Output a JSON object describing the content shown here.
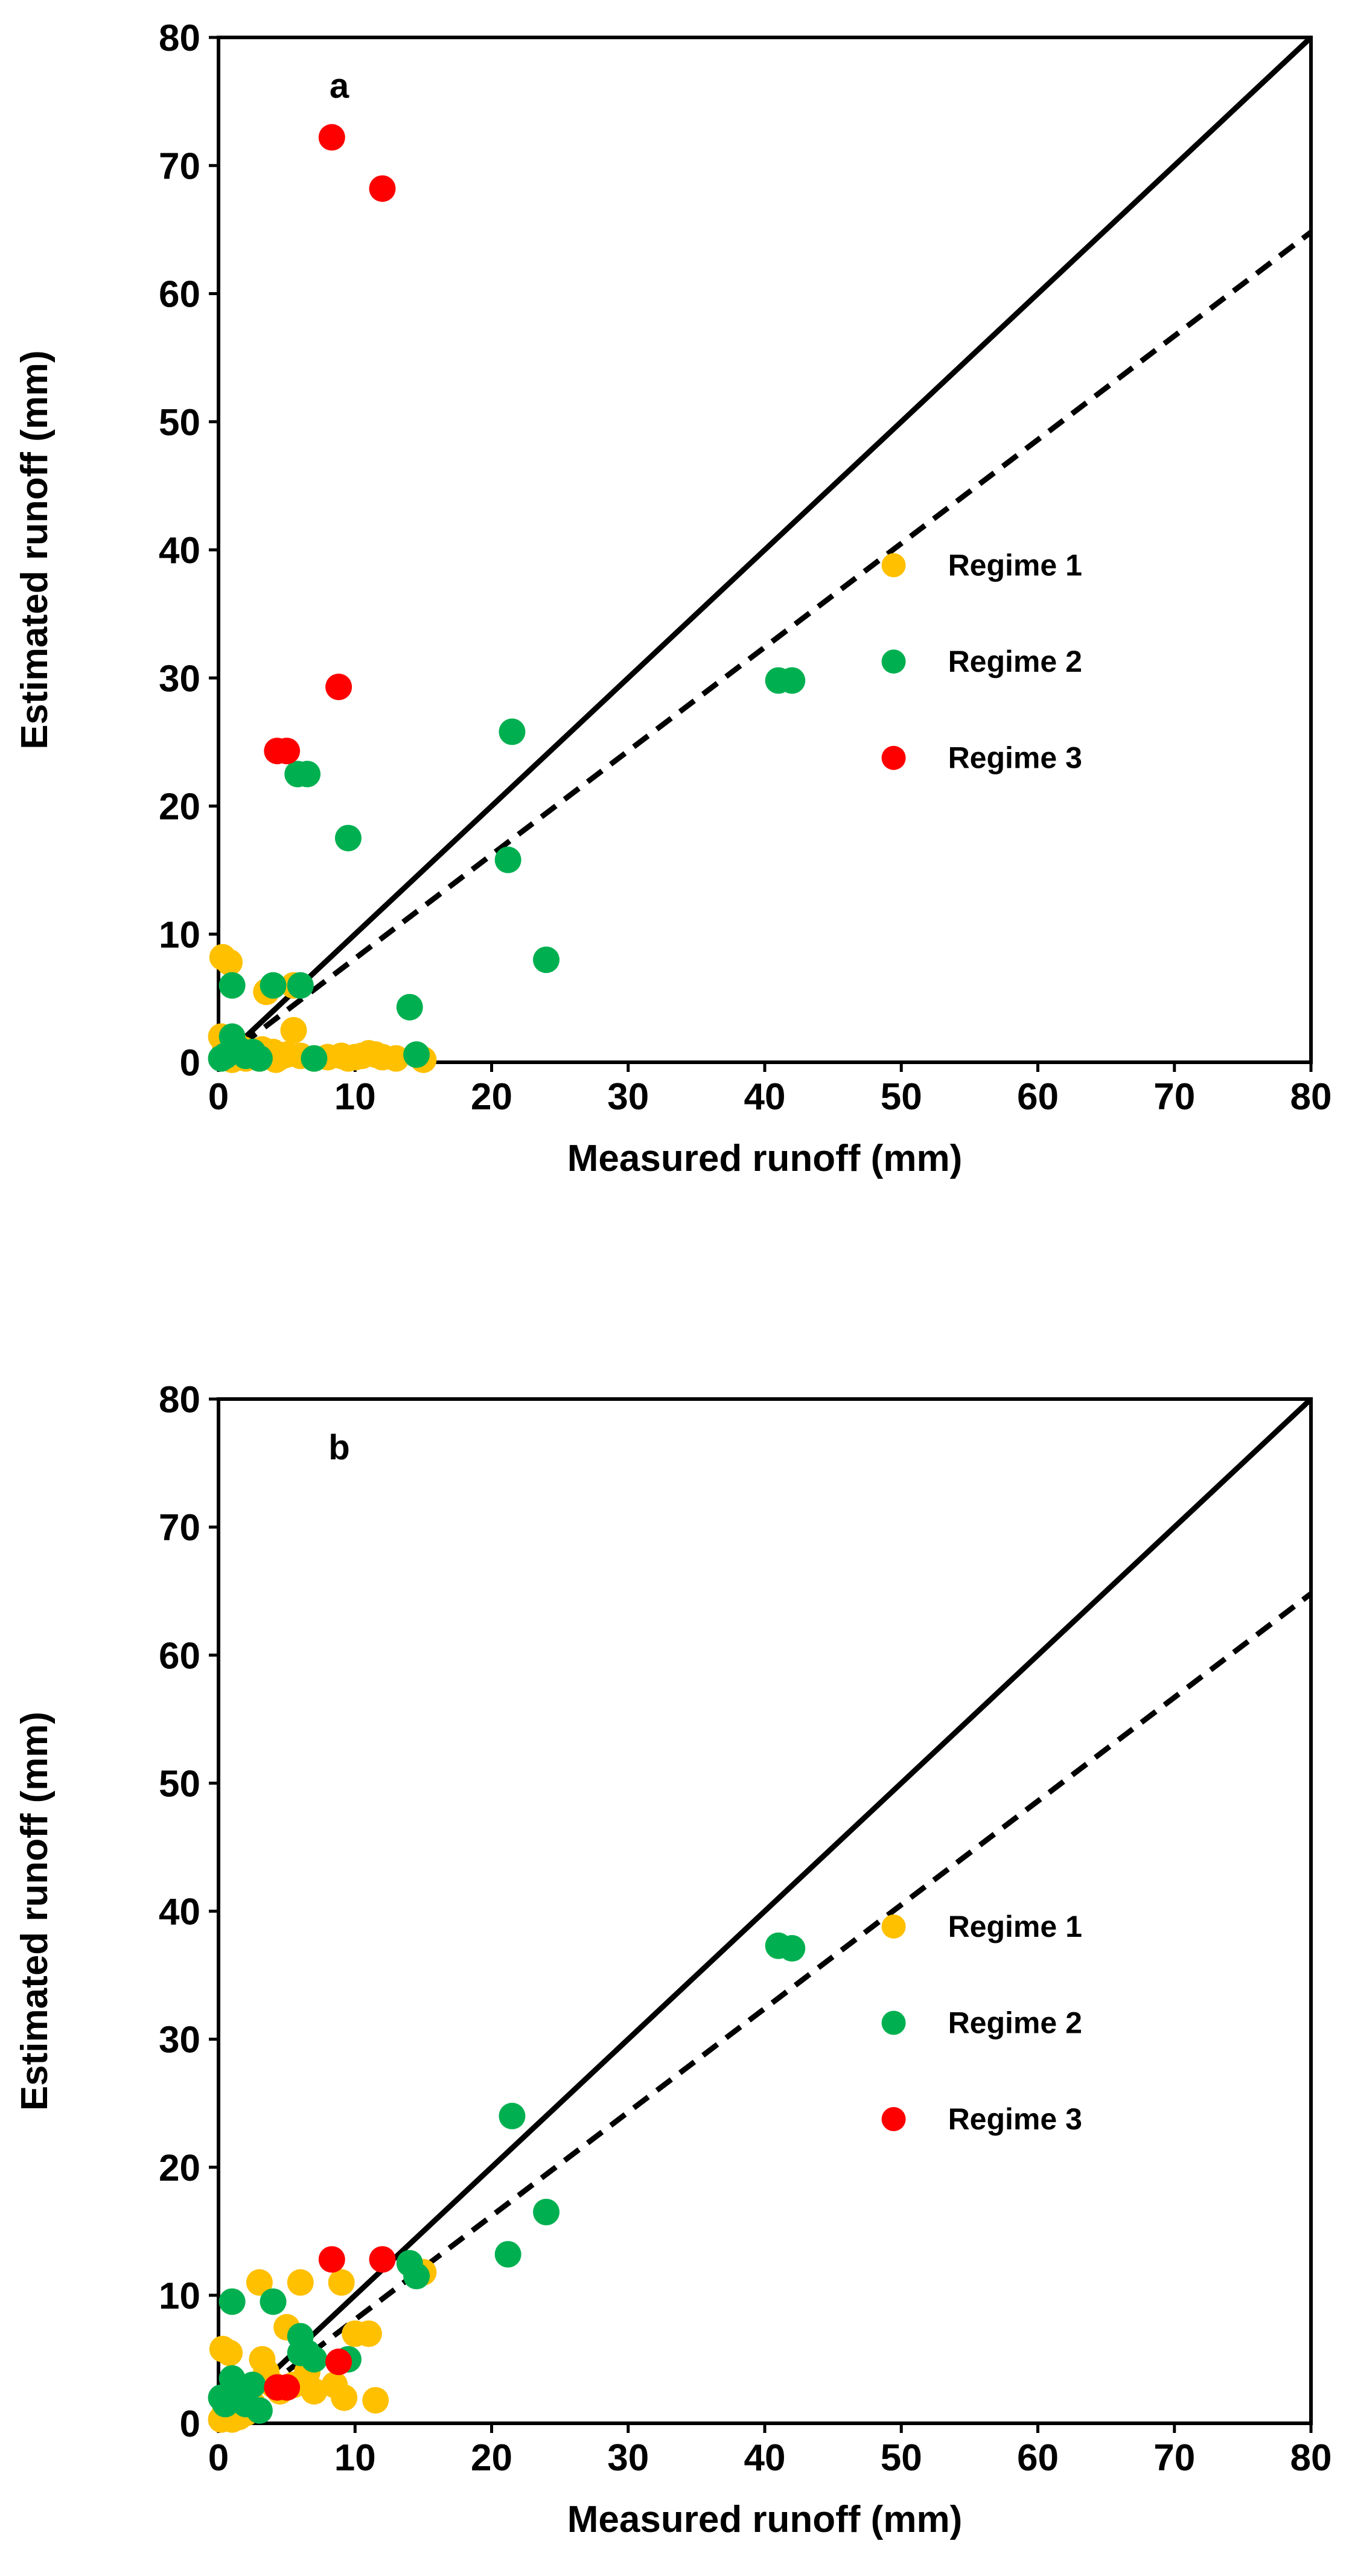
{
  "chart_data": [
    {
      "type": "scatter",
      "panel_label": "a",
      "xlabel": "Measured runoff (mm)",
      "ylabel": "Estimated runoff (mm)",
      "xlim": [
        0,
        80
      ],
      "ylim": [
        0,
        80
      ],
      "xticks": [
        0,
        10,
        20,
        30,
        40,
        50,
        60,
        70,
        80
      ],
      "yticks": [
        0,
        10,
        20,
        30,
        40,
        50,
        60,
        70,
        80
      ],
      "grid": false,
      "legend_position": "right",
      "reference_lines": [
        {
          "name": "1:1 line",
          "style": "solid",
          "color": "#000000",
          "slope": 1.0,
          "intercept": 0
        },
        {
          "name": "regression line",
          "style": "dashed",
          "color": "#000000",
          "slope": 0.81,
          "intercept": 0
        }
      ],
      "series": [
        {
          "name": "Regime 1",
          "color": "#FFC000",
          "points": [
            [
              0.3,
              8.2
            ],
            [
              0.8,
              7.8
            ],
            [
              0.2,
              2.0
            ],
            [
              0.5,
              1.2
            ],
            [
              1.2,
              1.5
            ],
            [
              1.8,
              1.0
            ],
            [
              2.5,
              0.6
            ],
            [
              3.0,
              0.3
            ],
            [
              3.5,
              5.5
            ],
            [
              4.0,
              0.8
            ],
            [
              4.5,
              0.4
            ],
            [
              5.0,
              0.6
            ],
            [
              5.5,
              2.5
            ],
            [
              5.5,
              6.0
            ],
            [
              6.0,
              0.5
            ],
            [
              7.0,
              0.3
            ],
            [
              8.0,
              0.4
            ],
            [
              9.0,
              0.5
            ],
            [
              9.5,
              0.3
            ],
            [
              10.0,
              0.4
            ],
            [
              10.5,
              0.5
            ],
            [
              11.0,
              0.7
            ],
            [
              11.5,
              0.6
            ],
            [
              12.0,
              0.4
            ],
            [
              13.0,
              0.3
            ],
            [
              15.0,
              0.2
            ],
            [
              1.0,
              0.2
            ],
            [
              2.0,
              0.3
            ],
            [
              3.2,
              1.0
            ],
            [
              4.2,
              0.2
            ]
          ]
        },
        {
          "name": "Regime 2",
          "color": "#00B050",
          "points": [
            [
              0.2,
              0.3
            ],
            [
              0.5,
              0.5
            ],
            [
              1.0,
              6.0
            ],
            [
              1.0,
              2.0
            ],
            [
              1.5,
              1.0
            ],
            [
              2.0,
              0.5
            ],
            [
              2.5,
              0.8
            ],
            [
              3.0,
              0.3
            ],
            [
              4.0,
              6.0
            ],
            [
              6.0,
              6.0
            ],
            [
              5.8,
              22.5
            ],
            [
              6.5,
              22.5
            ],
            [
              7.0,
              0.3
            ],
            [
              9.5,
              17.5
            ],
            [
              14.0,
              4.3
            ],
            [
              14.5,
              0.6
            ],
            [
              21.2,
              15.8
            ],
            [
              21.5,
              25.8
            ],
            [
              24.0,
              8.0
            ],
            [
              41.0,
              29.8
            ],
            [
              42.0,
              29.8
            ]
          ]
        },
        {
          "name": "Regime 3",
          "color": "#FF0000",
          "points": [
            [
              8.3,
              72.2
            ],
            [
              12.0,
              68.2
            ],
            [
              8.8,
              29.3
            ],
            [
              4.3,
              24.3
            ],
            [
              5.0,
              24.3
            ]
          ]
        }
      ]
    },
    {
      "type": "scatter",
      "panel_label": "b",
      "xlabel": "Measured runoff (mm)",
      "ylabel": "Estimated runoff (mm)",
      "xlim": [
        0,
        80
      ],
      "ylim": [
        0,
        80
      ],
      "xticks": [
        0,
        10,
        20,
        30,
        40,
        50,
        60,
        70,
        80
      ],
      "yticks": [
        0,
        10,
        20,
        30,
        40,
        50,
        60,
        70,
        80
      ],
      "grid": false,
      "legend_position": "right",
      "reference_lines": [
        {
          "name": "1:1 line",
          "style": "solid",
          "color": "#000000",
          "slope": 1.0,
          "intercept": 0
        },
        {
          "name": "regression line",
          "style": "dashed",
          "color": "#000000",
          "slope": 0.81,
          "intercept": 0
        }
      ],
      "series": [
        {
          "name": "Regime 1",
          "color": "#FFC000",
          "points": [
            [
              0.3,
              5.8
            ],
            [
              0.8,
              5.5
            ],
            [
              0.2,
              0.3
            ],
            [
              0.5,
              1.0
            ],
            [
              1.5,
              0.5
            ],
            [
              2.0,
              0.8
            ],
            [
              3.0,
              11.0
            ],
            [
              3.2,
              5.0
            ],
            [
              3.5,
              4.0
            ],
            [
              4.0,
              3.0
            ],
            [
              4.5,
              2.5
            ],
            [
              5.0,
              7.5
            ],
            [
              5.5,
              3.0
            ],
            [
              6.0,
              11.0
            ],
            [
              6.5,
              4.0
            ],
            [
              7.0,
              2.5
            ],
            [
              8.5,
              3.0
            ],
            [
              9.0,
              11.0
            ],
            [
              9.2,
              2.0
            ],
            [
              10.0,
              7.0
            ],
            [
              11.0,
              7.0
            ],
            [
              11.5,
              1.8
            ],
            [
              15.0,
              11.8
            ],
            [
              2.5,
              1.5
            ],
            [
              1.0,
              0.3
            ]
          ]
        },
        {
          "name": "Regime 2",
          "color": "#00B050",
          "points": [
            [
              0.2,
              2.0
            ],
            [
              0.5,
              1.5
            ],
            [
              1.0,
              9.5
            ],
            [
              1.0,
              3.5
            ],
            [
              1.5,
              2.5
            ],
            [
              2.0,
              1.5
            ],
            [
              2.5,
              3.0
            ],
            [
              3.0,
              1.0
            ],
            [
              4.0,
              9.5
            ],
            [
              6.0,
              6.8
            ],
            [
              6.0,
              5.5
            ],
            [
              6.5,
              5.5
            ],
            [
              7.0,
              5.0
            ],
            [
              9.5,
              5.0
            ],
            [
              14.0,
              12.5
            ],
            [
              14.5,
              11.5
            ],
            [
              21.2,
              13.2
            ],
            [
              21.5,
              24.0
            ],
            [
              24.0,
              16.5
            ],
            [
              41.0,
              37.3
            ],
            [
              42.0,
              37.1
            ]
          ]
        },
        {
          "name": "Regime 3",
          "color": "#FF0000",
          "points": [
            [
              8.3,
              12.8
            ],
            [
              12.0,
              12.8
            ],
            [
              8.8,
              4.8
            ],
            [
              4.3,
              2.8
            ],
            [
              5.0,
              2.8
            ]
          ]
        }
      ]
    }
  ]
}
